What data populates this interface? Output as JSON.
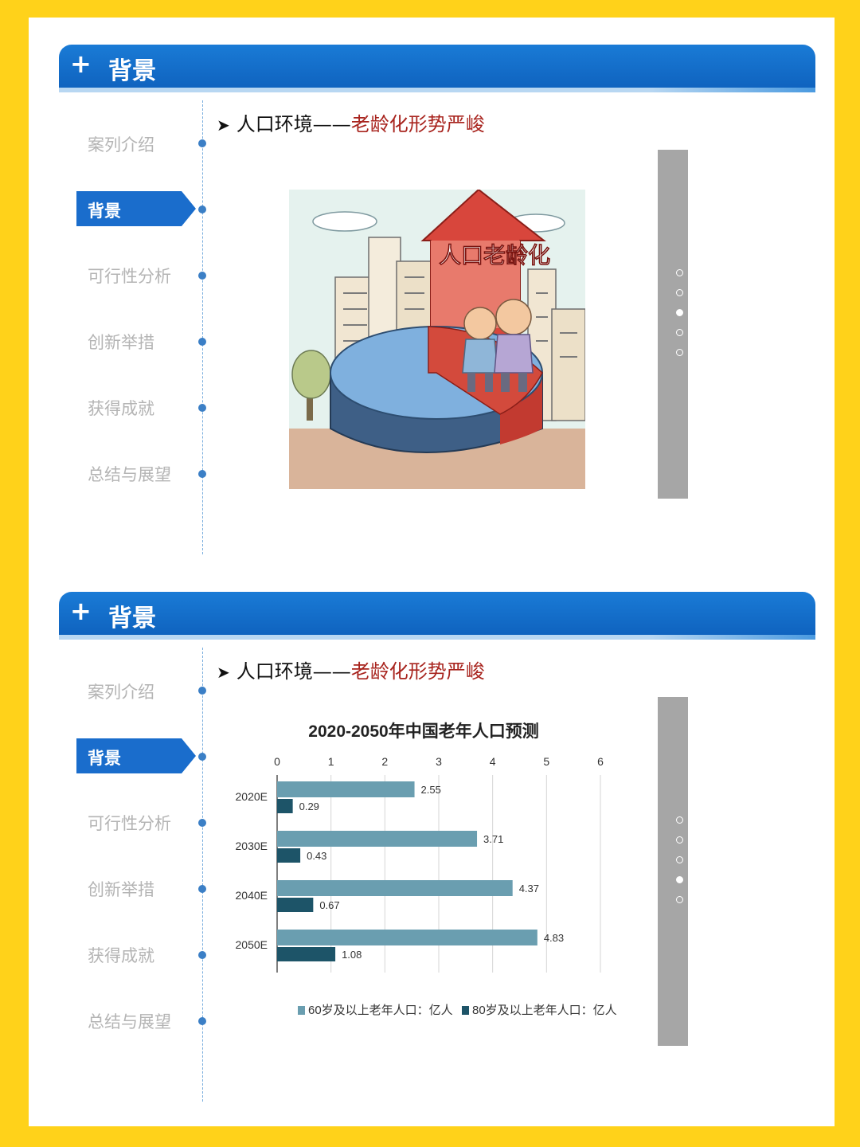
{
  "slides": [
    {
      "header": {
        "title": "背景"
      },
      "nav": {
        "items": [
          "案列介绍",
          "背景",
          "可行性分析",
          "创新举措",
          "获得成就",
          "总结与展望"
        ],
        "active_label": "背景"
      },
      "subtitle": {
        "prefix": "人口环境——",
        "highlight": "老龄化形势严峻"
      },
      "illustration": {
        "arrow_text": "人口老龄化"
      },
      "pager_active": 2
    },
    {
      "header": {
        "title": "背景"
      },
      "nav": {
        "items": [
          "案列介绍",
          "背景",
          "可行性分析",
          "创新举措",
          "获得成就",
          "总结与展望"
        ],
        "active_label": "背景"
      },
      "subtitle": {
        "prefix": "人口环境——",
        "highlight": "老龄化形势严峻"
      },
      "pager_active": 3
    }
  ],
  "chart_data": {
    "type": "bar",
    "orientation": "horizontal",
    "title": "2020-2050年中国老年人口预测",
    "categories": [
      "2020E",
      "2030E",
      "2040E",
      "2050E"
    ],
    "xlim": [
      0,
      6
    ],
    "xticks": [
      0,
      1,
      2,
      3,
      4,
      5,
      6
    ],
    "series": [
      {
        "name": "60岁及以上老年人口：亿人",
        "values": [
          2.55,
          3.71,
          4.37,
          4.83
        ],
        "color": "#6a9eb0"
      },
      {
        "name": "80岁及以上老年人口：亿人",
        "values": [
          0.29,
          0.43,
          0.67,
          1.08
        ],
        "color": "#1d5468"
      }
    ],
    "grid": true,
    "legend": "bottom"
  }
}
